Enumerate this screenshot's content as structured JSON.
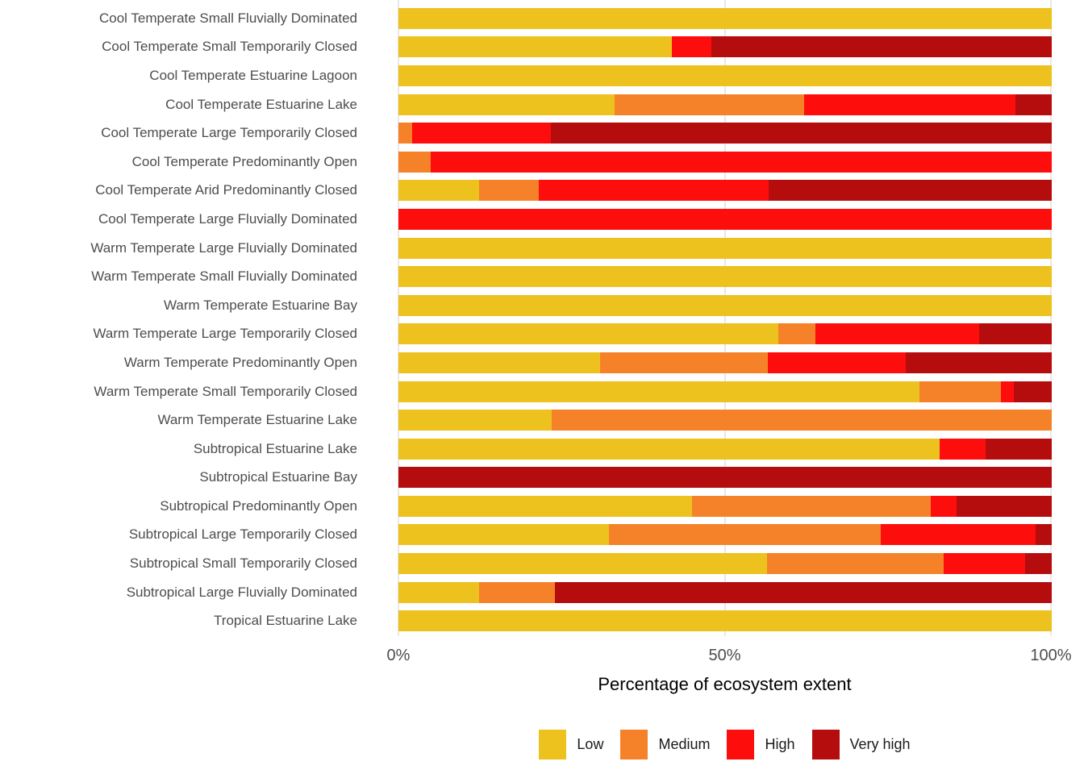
{
  "chart_data": {
    "type": "bar",
    "orientation": "horizontal",
    "stacked": true,
    "xlabel": "Percentage of ecosystem extent",
    "xlim": [
      0,
      100
    ],
    "grid": "vertical-light",
    "legend_position": "bottom-center",
    "x_ticks": [
      {
        "label": "0%",
        "pos": 0
      },
      {
        "label": "50%",
        "pos": 50
      },
      {
        "label": "100%",
        "pos": 100
      }
    ],
    "categories": [
      "Cool Temperate Small Fluvially Dominated",
      "Cool Temperate Small Temporarily Closed",
      "Cool Temperate Estuarine Lagoon",
      "Cool Temperate Estuarine Lake",
      "Cool Temperate Large Temporarily Closed",
      "Cool Temperate Predominantly Open",
      "Cool Temperate Arid Predominantly Closed",
      "Cool Temperate Large Fluvially Dominated",
      "Warm Temperate Large Fluvially Dominated",
      "Warm Temperate Small Fluvially Dominated",
      "Warm Temperate Estuarine Bay",
      "Warm Temperate Large Temporarily Closed",
      "Warm Temperate Predominantly Open",
      "Warm Temperate Small Temporarily Closed",
      "Warm Temperate Estuarine Lake",
      "Subtropical Estuarine Lake",
      "Subtropical Estuarine Bay",
      "Subtropical Predominantly Open",
      "Subtropical Large Temporarily Closed",
      "Subtropical Small Temporarily Closed",
      "Subtropical Large Fluvially Dominated",
      "Tropical Estuarine Lake"
    ],
    "series": [
      {
        "name": "Low",
        "color": "#EDC11E",
        "values": [
          100,
          41.8,
          100,
          33.1,
          0,
          0,
          12.3,
          0,
          100,
          100,
          100,
          58.2,
          30.9,
          79.7,
          23.4,
          82.8,
          0,
          44.9,
          32.2,
          56.4,
          12.3,
          100
        ]
      },
      {
        "name": "Medium",
        "color": "#F58229",
        "values": [
          0,
          0,
          0,
          29.0,
          2.1,
          4.9,
          9.2,
          0,
          0,
          0,
          0,
          5.6,
          25.6,
          12.5,
          76.6,
          0,
          0,
          36.6,
          41.6,
          27.0,
          11.6,
          0
        ]
      },
      {
        "name": "High",
        "color": "#FE0D0D",
        "values": [
          0,
          6.1,
          0,
          32.3,
          21.2,
          95.1,
          35.2,
          100,
          0,
          0,
          0,
          25.1,
          21.2,
          2.0,
          0,
          7.1,
          0,
          3.9,
          23.7,
          12.5,
          0,
          0
        ]
      },
      {
        "name": "Very high",
        "color": "#B50D0D",
        "values": [
          0,
          52.1,
          0,
          5.6,
          76.7,
          0,
          43.3,
          0,
          0,
          0,
          0,
          11.1,
          22.3,
          5.8,
          0,
          10.1,
          100,
          14.6,
          2.5,
          4.1,
          76.1,
          0
        ]
      }
    ]
  },
  "axis": {
    "title": "Percentage of ecosystem extent"
  },
  "colors": {
    "gridline": "#E8E8E8",
    "axis_text": "#4D4D4D",
    "label_text": "#4D4D4D",
    "title_text": "#000000"
  }
}
